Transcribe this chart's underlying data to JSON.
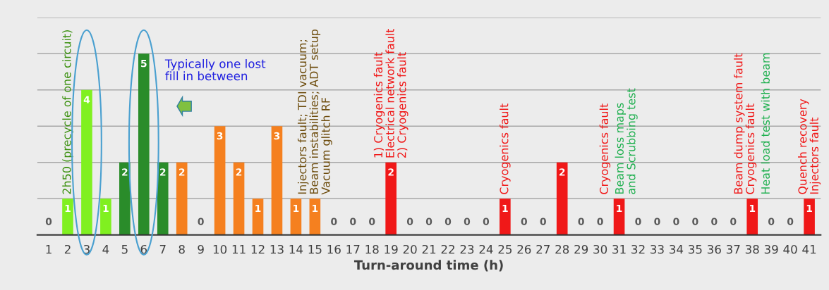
{
  "chart_data": {
    "type": "bar",
    "xlabel": "Turn-around time (h)",
    "categories": [
      "1",
      "2",
      "3",
      "4",
      "5",
      "6",
      "7",
      "8",
      "9",
      "10",
      "11",
      "12",
      "13",
      "14",
      "15",
      "16",
      "17",
      "18",
      "19",
      "20",
      "21",
      "22",
      "23",
      "24",
      "25",
      "26",
      "27",
      "28",
      "29",
      "30",
      "31",
      "32",
      "33",
      "34",
      "35",
      "36",
      "37",
      "38",
      "39",
      "40",
      "41"
    ],
    "values": [
      0,
      1,
      4,
      1,
      2,
      5,
      2,
      2,
      0,
      3,
      2,
      1,
      3,
      1,
      1,
      0,
      0,
      0,
      2,
      0,
      0,
      0,
      0,
      0,
      1,
      0,
      0,
      2,
      0,
      0,
      1,
      0,
      0,
      0,
      0,
      0,
      0,
      1,
      0,
      0,
      1
    ],
    "colors": [
      "#80f020",
      "#80f020",
      "#80f020",
      "#80f020",
      "#2a8c2a",
      "#2a8c2a",
      "#2a8c2a",
      "#f5801f",
      "#f5801f",
      "#f5801f",
      "#f5801f",
      "#f5801f",
      "#f5801f",
      "#f5801f",
      "#f5801f",
      "#f5801f",
      "#f5801f",
      "#f5801f",
      "#f01818",
      "#f01818",
      "#f01818",
      "#f01818",
      "#f01818",
      "#f01818",
      "#f01818",
      "#f01818",
      "#f01818",
      "#f01818",
      "#f01818",
      "#f01818",
      "#f01818",
      "#f01818",
      "#f01818",
      "#f01818",
      "#f01818",
      "#f01818",
      "#f01818",
      "#f01818",
      "#f01818",
      "#f01818",
      "#f01818"
    ],
    "ylim": [
      0,
      6
    ],
    "yticks": [
      {
        "value": 0,
        "label": null
      },
      {
        "value": 1,
        "label": null
      },
      {
        "value": 2,
        "label": null
      },
      {
        "value": 3,
        "label": null
      },
      {
        "value": 4,
        "label": null
      },
      {
        "value": 5,
        "label": null
      },
      {
        "value": 6,
        "label": null
      }
    ],
    "tick_labels": "x",
    "grid": "y",
    "data_labels": true,
    "annotations": [
      {
        "text": "2h50 (precycle of one circuit)",
        "x": "2",
        "y": 1
      },
      "Typically one lost\nfill in between",
      {
        "text": "Injectors fault; TDI vacuum;\nBeam instabilities; ADT setup\nVacuum glitch RF",
        "x": "15",
        "y": 1
      },
      {
        "text": "1) Cryogenics fault\nElectrical network fault\n2) Cryogenics fault",
        "x": "19",
        "y": 2
      },
      {
        "text": "Cryogenics fault",
        "x": "25",
        "y": 1
      },
      {
        "text": "Cryogenics fault",
        "x": "31",
        "y": 1
      },
      {
        "text": "Beam loss maps\nand Scrubbing test",
        "x": "31",
        "y": 1
      },
      {
        "text": "Beam dump system fault\nCryogenics fault",
        "x": "38",
        "y": 1
      },
      {
        "text": "Heat load test with beam",
        "x": "38",
        "y": 1
      },
      {
        "text": "Quench recovery\nInjectors fault",
        "x": "41",
        "y": 1
      }
    ]
  }
}
